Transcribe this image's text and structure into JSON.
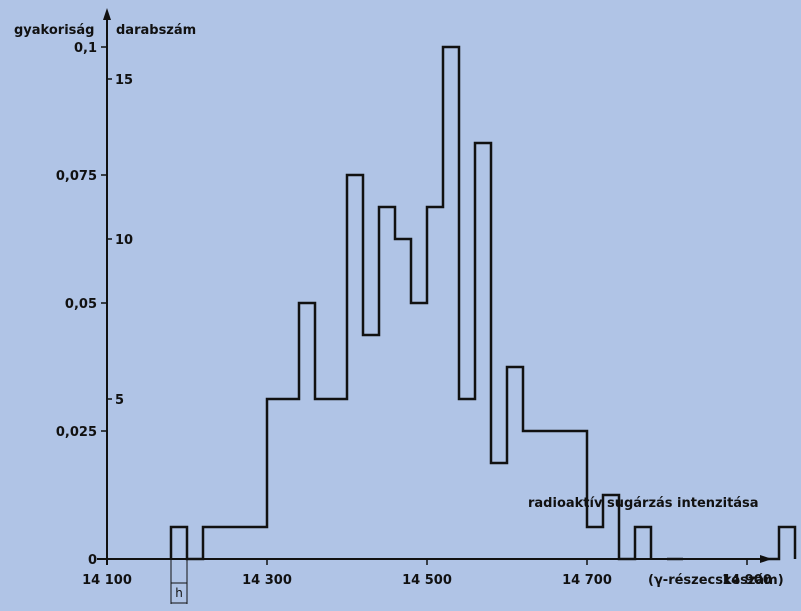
{
  "chart_data": {
    "type": "histogram",
    "title": "",
    "ylabel_left": "gyakoriság",
    "ylabel_right": "darabszám",
    "xlabel": "(γ-részecskeszám)",
    "annotation": "radioaktív sugárzás intenzitása",
    "bin_width_label": "h",
    "bin_width": 20,
    "xlim": [
      14100,
      14960
    ],
    "ylim_count": [
      0,
      16
    ],
    "x_ticks": [
      {
        "value": 14100,
        "label": "14 100"
      },
      {
        "value": 14300,
        "label": "14 300"
      },
      {
        "value": 14500,
        "label": "14 500"
      },
      {
        "value": 14700,
        "label": "14 700"
      },
      {
        "value": 14900,
        "label": "14 900"
      }
    ],
    "freq_ticks": [
      {
        "value": 0.025,
        "label": "0,025"
      },
      {
        "value": 0.05,
        "label": "0,05"
      },
      {
        "value": 0.075,
        "label": "0,075"
      },
      {
        "value": 0.1,
        "label": "0,1"
      }
    ],
    "count_ticks": [
      {
        "value": 0,
        "label": "0"
      },
      {
        "value": 5,
        "label": "5"
      },
      {
        "value": 10,
        "label": "10"
      },
      {
        "value": 15,
        "label": "15"
      }
    ],
    "bins": [
      {
        "x_start": 14180,
        "count": 1
      },
      {
        "x_start": 14200,
        "count": 0
      },
      {
        "x_start": 14220,
        "count": 1
      },
      {
        "x_start": 14240,
        "count": 1
      },
      {
        "x_start": 14260,
        "count": 1
      },
      {
        "x_start": 14280,
        "count": 1
      },
      {
        "x_start": 14300,
        "count": 5
      },
      {
        "x_start": 14320,
        "count": 5
      },
      {
        "x_start": 14340,
        "count": 8
      },
      {
        "x_start": 14360,
        "count": 5
      },
      {
        "x_start": 14380,
        "count": 5
      },
      {
        "x_start": 14400,
        "count": 12
      },
      {
        "x_start": 14420,
        "count": 7
      },
      {
        "x_start": 14440,
        "count": 11
      },
      {
        "x_start": 14460,
        "count": 10
      },
      {
        "x_start": 14480,
        "count": 8
      },
      {
        "x_start": 14500,
        "count": 11
      },
      {
        "x_start": 14520,
        "count": 16
      },
      {
        "x_start": 14540,
        "count": 5
      },
      {
        "x_start": 14560,
        "count": 13
      },
      {
        "x_start": 14580,
        "count": 3
      },
      {
        "x_start": 14600,
        "count": 6
      },
      {
        "x_start": 14620,
        "count": 4
      },
      {
        "x_start": 14640,
        "count": 4
      },
      {
        "x_start": 14660,
        "count": 4
      },
      {
        "x_start": 14680,
        "count": 4
      },
      {
        "x_start": 14700,
        "count": 1
      },
      {
        "x_start": 14720,
        "count": 2
      },
      {
        "x_start": 14740,
        "count": 0
      },
      {
        "x_start": 14760,
        "count": 1
      },
      {
        "x_start": 14800,
        "count": 0
      },
      {
        "x_start": 14920,
        "count": 0
      },
      {
        "x_start": 14940,
        "count": 1
      }
    ]
  }
}
